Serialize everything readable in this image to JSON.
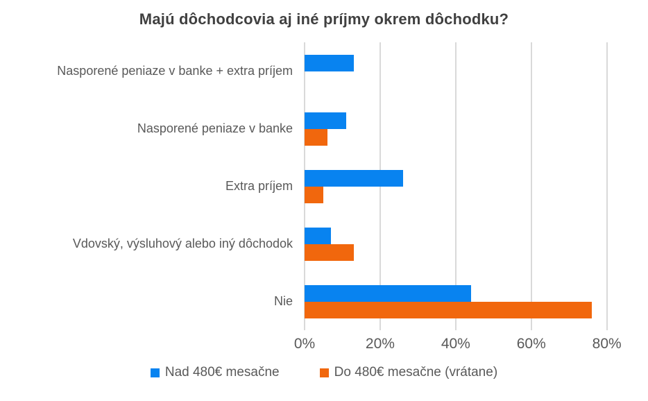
{
  "chart_data": {
    "type": "bar",
    "orientation": "horizontal",
    "title": "Majú dôchodcovia aj iné príjmy okrem dôchodku?",
    "xlabel": "",
    "ylabel": "",
    "categories": [
      "Nasporené peniaze v banke + extra príjem",
      "Nasporené peniaze v banke",
      "Extra príjem",
      "Vdovský, výsluhový alebo iný dôchodok",
      "Nie"
    ],
    "series": [
      {
        "name": "Nad 480€ mesačne",
        "color": "#0883f0",
        "values": [
          13,
          11,
          26,
          7,
          44
        ]
      },
      {
        "name": "Do 480€ mesačne (vrátane)",
        "color": "#f1670d",
        "values": [
          0,
          6,
          5,
          13,
          76
        ]
      }
    ],
    "x_ticks": [
      "0%",
      "20%",
      "40%",
      "60%",
      "80%"
    ],
    "x_tick_values": [
      0,
      20,
      40,
      60,
      80
    ],
    "xlim": [
      0,
      80
    ],
    "unit": "%",
    "grid": true,
    "gridline_color": "#d9d9d9",
    "title_color": "#404040",
    "label_color": "#595959",
    "legend_position": "bottom"
  }
}
